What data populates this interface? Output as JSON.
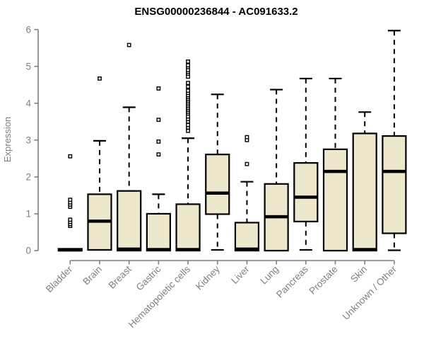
{
  "title": "ENSG00000236844 - AC091633.2",
  "chart_data": {
    "type": "boxplot",
    "title": "ENSG00000236844 - AC091633.2",
    "ylabel": "Expression",
    "xlabel": "",
    "ylim": [
      0,
      6
    ],
    "yticks": [
      0,
      1,
      2,
      3,
      4,
      5,
      6
    ],
    "grid": "off",
    "legend": "none",
    "categories": [
      "Bladder",
      "Brain",
      "Breast",
      "Gastric",
      "Hematopoietic cells",
      "Kidney",
      "Liver",
      "Lung",
      "Pancreas",
      "Prostate",
      "Skin",
      "Unknown / Other"
    ],
    "series": [
      {
        "name": "Bladder",
        "whisker_low": 0,
        "q1": 0,
        "median": 0.02,
        "q3": 0.05,
        "whisker_high": 0.05,
        "outliers": [
          0.67,
          0.72,
          0.78,
          0.84,
          1.19,
          1.25,
          1.31,
          1.38,
          2.56
        ]
      },
      {
        "name": "Brain",
        "whisker_low": 0,
        "q1": 0.02,
        "median": 0.8,
        "q3": 1.53,
        "whisker_high": 2.98,
        "outliers": [
          4.67
        ]
      },
      {
        "name": "Breast",
        "whisker_low": 0,
        "q1": 0,
        "median": 0.04,
        "q3": 1.62,
        "whisker_high": 3.89,
        "outliers": [
          5.58
        ]
      },
      {
        "name": "Gastric",
        "whisker_low": 0,
        "q1": 0,
        "median": 0.03,
        "q3": 1.0,
        "whisker_high": 1.53,
        "outliers": [
          2.61,
          2.96,
          3.55,
          4.4
        ]
      },
      {
        "name": "Hematopoietic cells",
        "whisker_low": 0,
        "q1": 0,
        "median": 0.03,
        "q3": 1.26,
        "whisker_high": 3.05,
        "outliers": [
          3.25,
          3.34,
          3.41,
          3.5,
          3.57,
          3.64,
          3.72,
          3.77,
          3.82,
          3.87,
          3.92,
          3.97,
          4.02,
          4.07,
          4.12,
          4.17,
          4.22,
          4.28,
          4.34,
          4.45,
          4.55,
          4.72,
          4.8,
          4.85,
          4.9,
          4.98,
          5.03,
          5.13
        ]
      },
      {
        "name": "Kidney",
        "whisker_low": 0.02,
        "q1": 0.99,
        "median": 1.56,
        "q3": 2.61,
        "whisker_high": 4.24,
        "outliers": []
      },
      {
        "name": "Liver",
        "whisker_low": 0,
        "q1": 0,
        "median": 0.04,
        "q3": 0.76,
        "whisker_high": 1.87,
        "outliers": [
          2.35,
          3.0,
          3.08
        ]
      },
      {
        "name": "Lung",
        "whisker_low": 0,
        "q1": 0,
        "median": 0.92,
        "q3": 1.81,
        "whisker_high": 4.37,
        "outliers": []
      },
      {
        "name": "Pancreas",
        "whisker_low": 0.02,
        "q1": 0.79,
        "median": 1.45,
        "q3": 2.38,
        "whisker_high": 4.67,
        "outliers": []
      },
      {
        "name": "Prostate",
        "whisker_low": 0,
        "q1": 0,
        "median": 2.15,
        "q3": 2.75,
        "whisker_high": 4.67,
        "outliers": []
      },
      {
        "name": "Skin",
        "whisker_low": 0,
        "q1": 0,
        "median": 0.03,
        "q3": 3.18,
        "whisker_high": 3.76,
        "outliers": []
      },
      {
        "name": "Unknown / Other",
        "whisker_low": 0.01,
        "q1": 0.47,
        "median": 2.15,
        "q3": 3.11,
        "whisker_high": 5.97,
        "outliers": []
      }
    ],
    "colors": {
      "box_fill": "#EDE8CC",
      "box_stroke": "#000000",
      "median": "#000000",
      "whisker": "#000000",
      "axis": "#7f7f7f",
      "axis_text": "#7f7f7f",
      "title": "#000000",
      "outlier_fill": "#ffffff",
      "outlier_stroke": "#000000"
    }
  }
}
